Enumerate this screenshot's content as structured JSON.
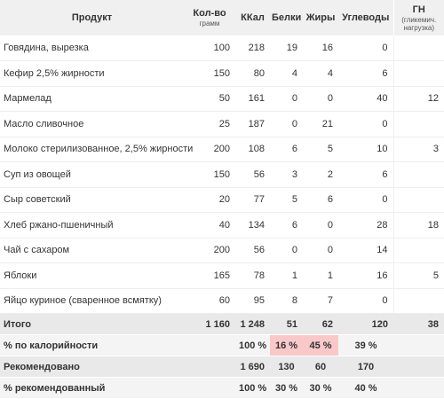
{
  "header": {
    "product": "Продукт",
    "qty": "Кол-во",
    "qty_unit": "грамм",
    "kcal": "ККал",
    "protein": "Белки",
    "fat": "Жиры",
    "carbs": "Углеводы",
    "gl": "ГН",
    "gl_note": "(гликемич. нагрузка)"
  },
  "rows": [
    {
      "name": "Говядина, вырезка",
      "qty": "100",
      "kcal": "218",
      "protein": "19",
      "fat": "16",
      "carbs": "0",
      "gl": ""
    },
    {
      "name": "Кефир 2,5% жирности",
      "qty": "150",
      "kcal": "80",
      "protein": "4",
      "fat": "4",
      "carbs": "6",
      "gl": ""
    },
    {
      "name": "Мармелад",
      "qty": "50",
      "kcal": "161",
      "protein": "0",
      "fat": "0",
      "carbs": "40",
      "gl": "12"
    },
    {
      "name": "Масло сливочное",
      "qty": "25",
      "kcal": "187",
      "protein": "0",
      "fat": "21",
      "carbs": "0",
      "gl": ""
    },
    {
      "name": "Молоко стерилизованное, 2,5% жирности",
      "qty": "200",
      "kcal": "108",
      "protein": "6",
      "fat": "5",
      "carbs": "10",
      "gl": "3"
    },
    {
      "name": "Суп из овощей",
      "qty": "150",
      "kcal": "56",
      "protein": "3",
      "fat": "2",
      "carbs": "6",
      "gl": ""
    },
    {
      "name": "Сыр советский",
      "qty": "20",
      "kcal": "77",
      "protein": "5",
      "fat": "6",
      "carbs": "0",
      "gl": ""
    },
    {
      "name": "Хлеб ржано-пшеничный",
      "qty": "40",
      "kcal": "134",
      "protein": "6",
      "fat": "0",
      "carbs": "28",
      "gl": "18"
    },
    {
      "name": "Чай с сахаром",
      "qty": "200",
      "kcal": "56",
      "protein": "0",
      "fat": "0",
      "carbs": "14",
      "gl": ""
    },
    {
      "name": "Яблоки",
      "qty": "165",
      "kcal": "78",
      "protein": "1",
      "fat": "1",
      "carbs": "16",
      "gl": "5"
    },
    {
      "name": "Яйцо куриное (сваренное всмятку)",
      "qty": "60",
      "kcal": "95",
      "protein": "8",
      "fat": "7",
      "carbs": "0",
      "gl": ""
    }
  ],
  "total": {
    "label": "Итого",
    "qty": "1 160",
    "kcal": "1 248",
    "protein": "51",
    "fat": "62",
    "carbs": "120",
    "gl": "38"
  },
  "calorie_pct": {
    "label": "% по калорийности",
    "kcal": "100 %",
    "protein": "16 %",
    "fat": "45 %",
    "carbs": "39 %"
  },
  "recommended": {
    "label": "Рекомендовано",
    "kcal": "1 690",
    "protein": "130",
    "fat": "60",
    "carbs": "170"
  },
  "recommended_pct": {
    "label": "% рекомендованный",
    "kcal": "100 %",
    "protein": "30 %",
    "fat": "30 %",
    "carbs": "40 %"
  },
  "colors": {
    "header_bg": "#f0f0f0",
    "summary_bg": "#e9e9e9",
    "highlight": "#f9c8c8"
  }
}
